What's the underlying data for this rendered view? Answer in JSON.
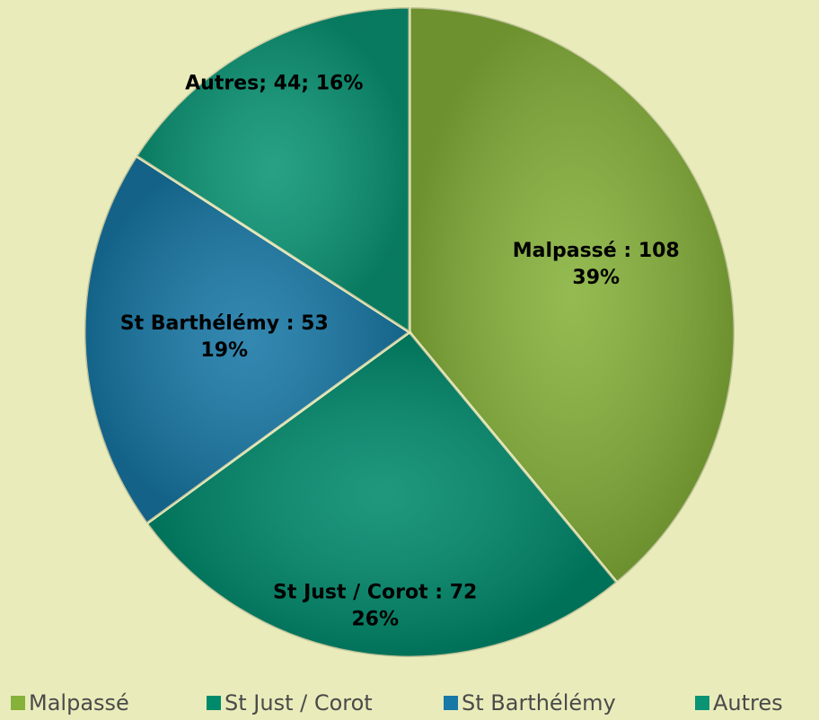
{
  "chart_data": {
    "type": "pie",
    "categories": [
      "Malpassé",
      "St Just / Corot",
      "St Barthélémy",
      "Autres"
    ],
    "values": [
      108,
      72,
      53,
      44
    ],
    "colors": [
      "#86b13a",
      "#008a6c",
      "#1878a6",
      "#0a9474"
    ],
    "value_labels": [
      [
        "Malpassé : 108",
        "39%"
      ],
      [
        "St Just / Corot : 72",
        "26%"
      ],
      [
        "St Barthélémy : 53",
        "19%"
      ],
      [
        "Autres; 44; 16%"
      ]
    ],
    "legend": "bottom"
  }
}
